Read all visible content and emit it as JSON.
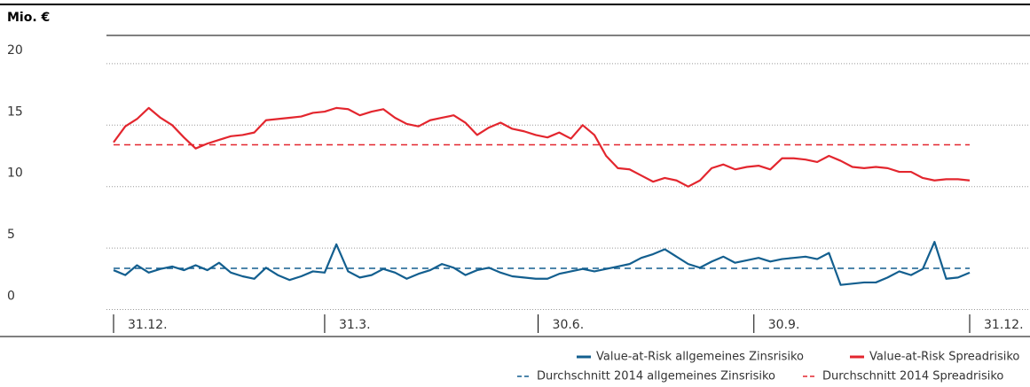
{
  "chart_data": {
    "type": "line",
    "title": "Mio. €",
    "x": [
      0,
      5,
      10,
      15,
      20,
      25,
      30,
      35,
      40,
      45,
      50,
      55,
      60,
      65,
      70,
      75,
      80,
      85,
      90,
      95,
      100,
      105,
      110,
      115,
      120,
      125,
      130,
      135,
      140,
      145,
      150,
      155,
      160,
      165,
      170,
      175,
      180,
      185,
      190,
      195,
      200,
      205,
      210,
      215,
      220,
      225,
      230,
      235,
      240,
      245,
      250,
      255,
      260,
      265,
      270,
      275,
      280,
      285,
      290,
      295,
      300,
      305,
      310,
      315,
      320,
      325,
      330,
      335,
      340,
      345,
      350,
      355,
      360,
      365
    ],
    "xlim": [
      0,
      365
    ],
    "xticks": [
      {
        "value": 0,
        "label": "31.12."
      },
      {
        "value": 90,
        "label": "31.3."
      },
      {
        "value": 181,
        "label": "30.6."
      },
      {
        "value": 273,
        "label": "30.9."
      },
      {
        "value": 365,
        "label": "31.12."
      }
    ],
    "ylim": [
      -2.2,
      22.3
    ],
    "yticks": [
      0,
      5,
      10,
      15,
      20
    ],
    "grid": true,
    "series": [
      {
        "name": "Value-at-Risk allgemeines Zinsrisiko",
        "color": "#135f8f",
        "dash": false,
        "values": [
          3.2,
          2.8,
          3.6,
          3.0,
          3.3,
          3.5,
          3.2,
          3.6,
          3.2,
          3.8,
          3.0,
          2.7,
          2.5,
          3.4,
          2.8,
          2.4,
          2.7,
          3.1,
          3.0,
          5.3,
          3.1,
          2.6,
          2.8,
          3.3,
          3.0,
          2.5,
          2.9,
          3.2,
          3.7,
          3.4,
          2.8,
          3.2,
          3.4,
          3.0,
          2.7,
          2.6,
          2.5,
          2.5,
          2.9,
          3.1,
          3.3,
          3.1,
          3.3,
          3.5,
          3.7,
          4.2,
          4.5,
          4.9,
          4.3,
          3.7,
          3.4,
          3.9,
          4.3,
          3.8,
          4.0,
          4.2,
          3.9,
          4.1,
          4.2,
          4.3,
          4.1,
          4.6,
          2.0,
          2.1,
          2.2,
          2.2,
          2.6,
          3.1,
          2.8,
          3.3,
          5.5,
          2.5,
          2.6,
          3.0
        ]
      },
      {
        "name": "Value-at-Risk Spreadrisiko",
        "color": "#e3262e",
        "dash": false,
        "values": [
          13.6,
          14.9,
          15.5,
          16.4,
          15.6,
          15.0,
          14.0,
          13.1,
          13.5,
          13.8,
          14.1,
          14.2,
          14.4,
          15.4,
          15.5,
          15.6,
          15.7,
          16.0,
          16.1,
          16.4,
          16.3,
          15.8,
          16.1,
          16.3,
          15.6,
          15.1,
          14.9,
          15.4,
          15.6,
          15.8,
          15.2,
          14.2,
          14.8,
          15.2,
          14.7,
          14.5,
          14.2,
          14.0,
          14.4,
          13.9,
          15.0,
          14.2,
          12.5,
          11.5,
          11.4,
          10.9,
          10.4,
          10.7,
          10.5,
          10.0,
          10.5,
          11.5,
          11.8,
          11.4,
          11.6,
          11.7,
          11.4,
          12.3,
          12.3,
          12.2,
          12.0,
          12.5,
          12.1,
          11.6,
          11.5,
          11.6,
          11.5,
          11.2,
          11.2,
          10.7,
          10.5,
          10.6,
          10.6,
          10.5
        ]
      },
      {
        "name": "Durchschnitt 2014 allgemeines Zinsrisiko",
        "color": "#135f8f",
        "dash": true,
        "x": [
          0,
          365
        ],
        "values": [
          3.35,
          3.35
        ]
      },
      {
        "name": "Durchschnitt 2014 Spreadrisiko",
        "color": "#e3262e",
        "dash": true,
        "x": [
          0,
          365
        ],
        "values": [
          13.4,
          13.4
        ]
      }
    ]
  }
}
